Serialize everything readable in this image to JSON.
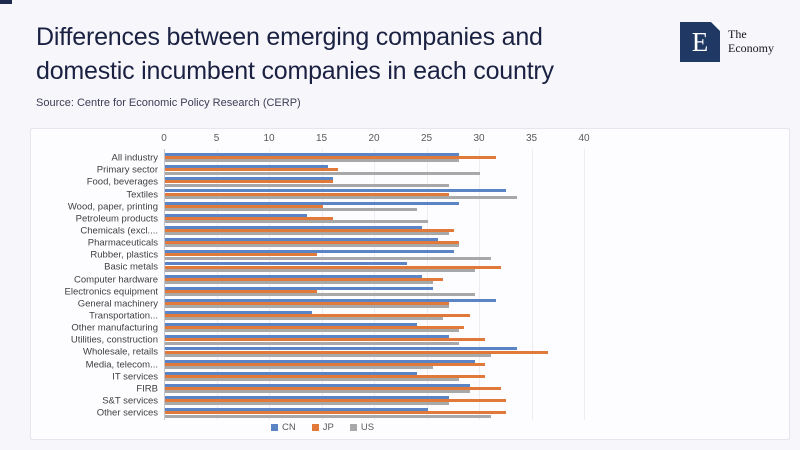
{
  "page": {
    "background_color": "#f7f7fb",
    "corner_accent_color": "#1e2a4e"
  },
  "header": {
    "title": "Differences between emerging companies and domestic incumbent companies in each country",
    "source": "Source: Centre for Economic Policy Research (CERP)"
  },
  "logo": {
    "letter": "E",
    "name_line1": "The",
    "name_line2": "Economy",
    "box_color": "#1f3864"
  },
  "chart_data": {
    "type": "bar",
    "orientation": "horizontal",
    "axis_position": "top",
    "legend_position": "bottom",
    "grid": true,
    "xlim": [
      0,
      40
    ],
    "xticks": [
      0,
      5,
      10,
      15,
      20,
      25,
      30,
      35,
      40
    ],
    "categories": [
      "All industry",
      "Primary sector",
      "Food, beverages",
      "Textiles",
      "Wood, paper, printing",
      "Petroleum products",
      "Chemicals (excl....",
      "Pharmaceuticals",
      "Rubber, plastics",
      "Basic metals",
      "Computer hardware",
      "Electronics equipment",
      "General machinery",
      "Transportation...",
      "Other manufacturing",
      "Utilities, construction",
      "Wholesale, retails",
      "Media, telecom...",
      "IT services",
      "FIRB",
      "S&T services",
      "Other services"
    ],
    "series": [
      {
        "name": "CN",
        "color": "#5b84c4",
        "values": [
          28,
          15.5,
          16,
          32.5,
          28,
          13.5,
          24.5,
          26,
          27.5,
          23,
          24.5,
          25.5,
          31.5,
          14,
          24,
          27,
          33.5,
          29.5,
          24,
          29,
          27,
          25
        ]
      },
      {
        "name": "JP",
        "color": "#e0793a",
        "values": [
          31.5,
          16.5,
          16,
          27,
          15,
          16,
          27.5,
          28,
          14.5,
          32,
          26.5,
          14.5,
          27,
          29,
          28.5,
          30.5,
          36.5,
          30.5,
          30.5,
          32,
          32.5,
          32.5
        ]
      },
      {
        "name": "US",
        "color": "#a8a8a8",
        "values": [
          28,
          30,
          27,
          33.5,
          24,
          25,
          27,
          28,
          31,
          29.5,
          25.5,
          29.5,
          27,
          26.5,
          28,
          28,
          31,
          25.5,
          28,
          29,
          27,
          31
        ]
      }
    ]
  }
}
